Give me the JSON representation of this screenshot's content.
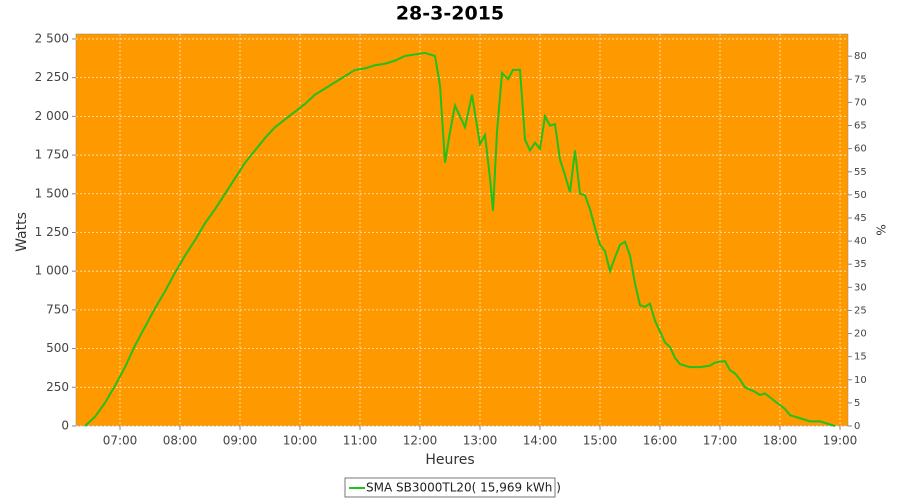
{
  "chart_data": {
    "type": "line",
    "title": "28-3-2015",
    "x_label": "Heures",
    "y_label": "Watts",
    "y2_label": "%",
    "plot_background": "#ff9900",
    "grid": true,
    "xlim": [
      "06:16",
      "19:08"
    ],
    "xticks": [
      "07:00",
      "08:00",
      "09:00",
      "10:00",
      "11:00",
      "12:00",
      "13:00",
      "14:00",
      "15:00",
      "16:00",
      "17:00",
      "18:00",
      "19:00"
    ],
    "ylim": [
      0,
      2532
    ],
    "yticks": [
      0,
      250,
      500,
      750,
      {
        "value": 1000,
        "label": "1 000"
      },
      {
        "value": 1250,
        "label": "1 250"
      },
      {
        "value": 1500,
        "label": "1 500"
      },
      {
        "value": 1750,
        "label": "1 750"
      },
      {
        "value": 2000,
        "label": "2 000"
      },
      {
        "value": 2250,
        "label": "2 250"
      },
      {
        "value": 2500,
        "label": "2 500"
      }
    ],
    "y2lim": [
      0,
      84.8
    ],
    "y2ticks": [
      0,
      5,
      10,
      15,
      20,
      25,
      30,
      35,
      40,
      45,
      50,
      55,
      60,
      65,
      70,
      75,
      80
    ],
    "legend": "bottom",
    "x": [
      "06:25",
      "06:35",
      "06:45",
      "06:55",
      "07:05",
      "07:15",
      "07:25",
      "07:35",
      "07:45",
      "07:55",
      "08:05",
      "08:15",
      "08:25",
      "08:35",
      "08:45",
      "08:55",
      "09:05",
      "09:15",
      "09:25",
      "09:35",
      "09:45",
      "09:55",
      "10:05",
      "10:15",
      "10:25",
      "10:35",
      "10:45",
      "10:55",
      "11:05",
      "11:15",
      "11:25",
      "11:35",
      "11:45",
      "11:55",
      "12:05",
      "12:15",
      "12:20",
      "12:25",
      "12:30",
      "12:35",
      "12:45",
      "12:52",
      "13:00",
      "13:05",
      "13:10",
      "13:13",
      "13:17",
      "13:22",
      "13:28",
      "13:33",
      "13:40",
      "13:45",
      "13:50",
      "13:55",
      "14:00",
      "14:05",
      "14:10",
      "14:15",
      "14:20",
      "14:25",
      "14:30",
      "14:35",
      "14:40",
      "14:45",
      "14:50",
      "14:55",
      "15:00",
      "15:05",
      "15:10",
      "15:15",
      "15:20",
      "15:25",
      "15:30",
      "15:35",
      "15:40",
      "15:45",
      "15:50",
      "15:55",
      "16:00",
      "16:05",
      "16:10",
      "16:15",
      "16:20",
      "16:30",
      "16:40",
      "16:50",
      "16:55",
      "17:05",
      "17:10",
      "17:15",
      "17:20",
      "17:25",
      "17:35",
      "17:40",
      "17:45",
      "17:55",
      "18:05",
      "18:10",
      "18:20",
      "18:30",
      "18:40",
      "18:45",
      "18:55"
    ],
    "series": [
      {
        "name": "SMA SB3000TL20( 15,969 kWh )",
        "color": "#22c01a",
        "values": [
          0,
          60,
          150,
          260,
          380,
          520,
          640,
          760,
          870,
          990,
          1100,
          1200,
          1310,
          1400,
          1500,
          1600,
          1700,
          1780,
          1860,
          1930,
          1980,
          2030,
          2080,
          2140,
          2180,
          2220,
          2260,
          2300,
          2310,
          2330,
          2340,
          2360,
          2390,
          2400,
          2410,
          2390,
          2200,
          1700,
          1900,
          2070,
          1930,
          2140,
          1820,
          1880,
          1600,
          1390,
          1900,
          2280,
          2240,
          2300,
          2300,
          1850,
          1780,
          1830,
          1790,
          2000,
          1940,
          1950,
          1720,
          1620,
          1510,
          1780,
          1500,
          1490,
          1400,
          1280,
          1170,
          1130,
          1000,
          1090,
          1170,
          1190,
          1100,
          920,
          780,
          770,
          790,
          680,
          610,
          540,
          510,
          440,
          400,
          380,
          380,
          390,
          410,
          420,
          360,
          340,
          300,
          250,
          220,
          200,
          210,
          160,
          110,
          70,
          50,
          30,
          30,
          20,
          0
        ]
      }
    ]
  }
}
